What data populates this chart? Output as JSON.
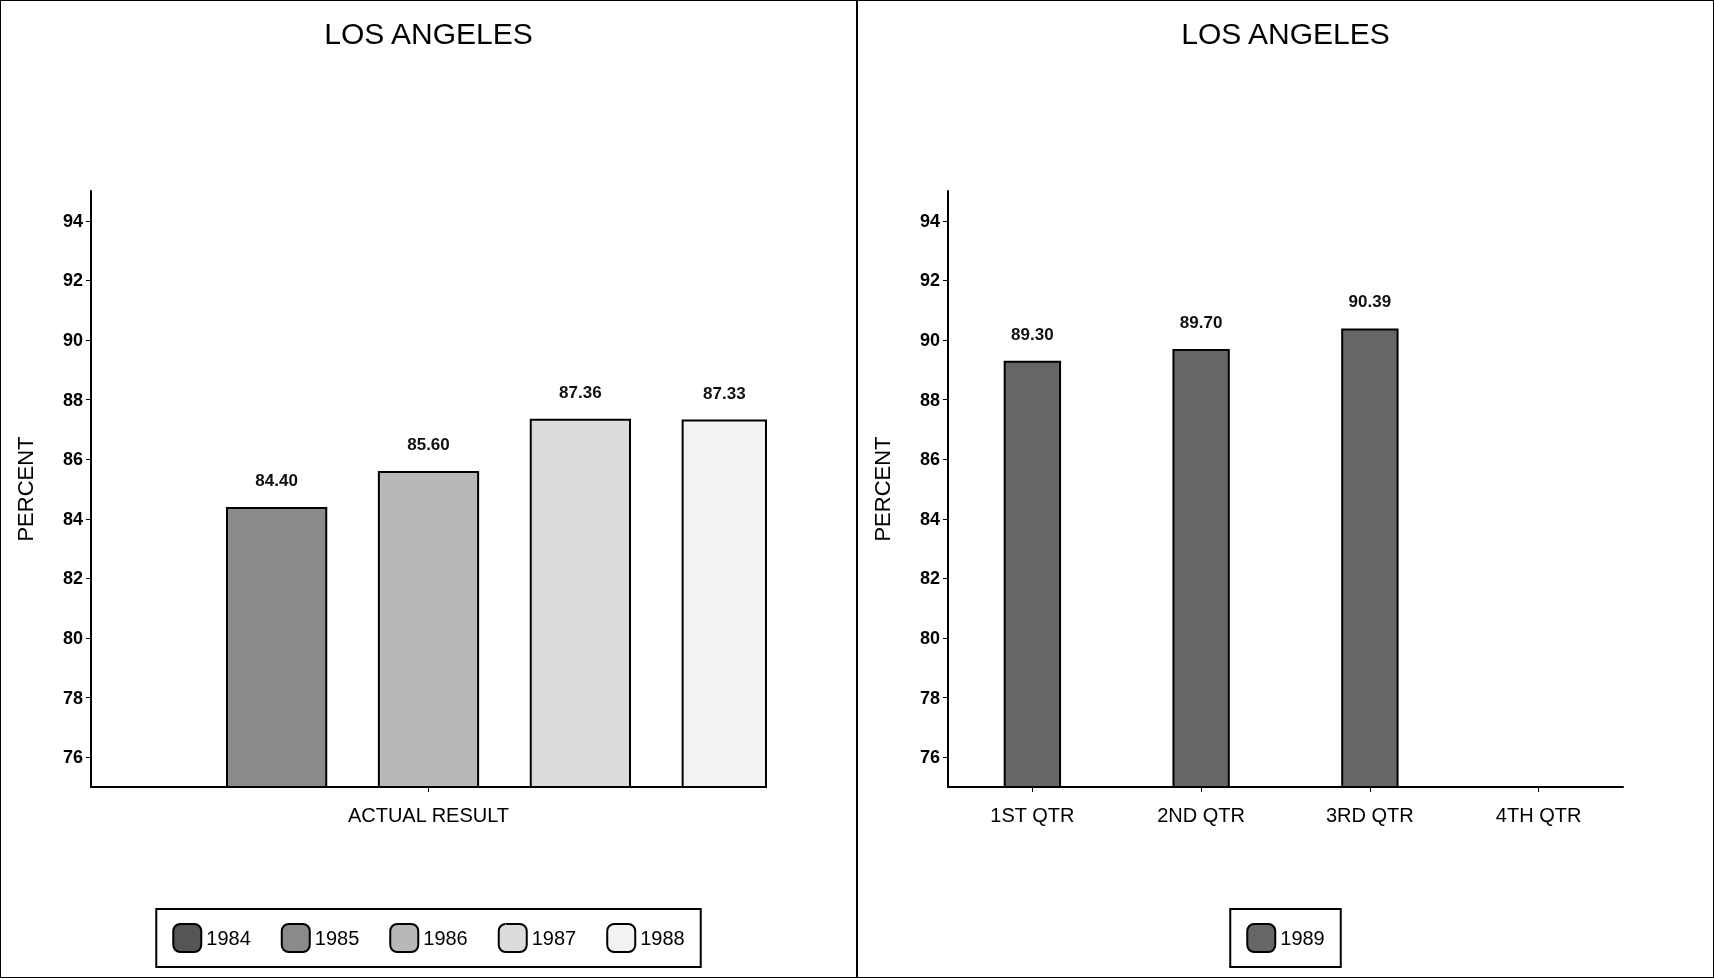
{
  "chart_data": [
    {
      "type": "bar",
      "title": "LOS ANGELES",
      "ylabel": "PERCENT",
      "categories": [
        "ACTUAL RESULT"
      ],
      "series": [
        {
          "name": "1984",
          "color": "#555555",
          "values": [
            null
          ],
          "value_labels": [
            null
          ]
        },
        {
          "name": "1985",
          "color": "#8a8a8a",
          "values": [
            84.4
          ],
          "value_labels": [
            "84.40"
          ]
        },
        {
          "name": "1986",
          "color": "#b8b8b8",
          "values": [
            85.6
          ],
          "value_labels": [
            "85.60"
          ]
        },
        {
          "name": "1987",
          "color": "#dcdcdc",
          "values": [
            87.36
          ],
          "value_labels": [
            "87.36"
          ]
        },
        {
          "name": "1988",
          "color": "#f2f2f2",
          "values": [
            87.33
          ],
          "value_labels": [
            "87.33"
          ]
        }
      ],
      "ylim": [
        75,
        95
      ],
      "yticks": [
        76,
        78,
        80,
        82,
        84,
        86,
        88,
        90,
        92,
        94
      ],
      "grid": false,
      "legend": "bottom"
    },
    {
      "type": "bar",
      "title": "LOS ANGELES",
      "ylabel": "PERCENT",
      "categories": [
        "1ST QTR",
        "2ND QTR",
        "3RD QTR",
        "4TH QTR"
      ],
      "series": [
        {
          "name": "1989",
          "color": "#666666",
          "values": [
            89.3,
            89.7,
            90.39,
            null
          ],
          "value_labels": [
            "89.30",
            "89.70",
            "90.39",
            null
          ]
        }
      ],
      "ylim": [
        75,
        95
      ],
      "yticks": [
        76,
        78,
        80,
        82,
        84,
        86,
        88,
        90,
        92,
        94
      ],
      "grid": false,
      "legend": "bottom"
    }
  ]
}
